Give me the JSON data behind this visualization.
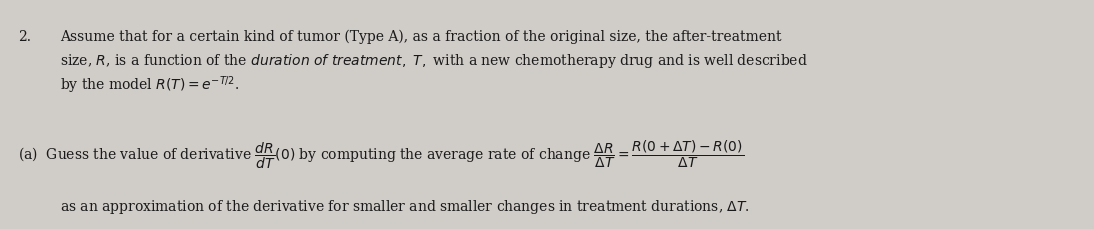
{
  "bg_color": "#d0ccc8",
  "text_color": "#1a1a1a",
  "fig_width": 10.94,
  "fig_height": 2.29,
  "dpi": 100,
  "fontsize": 10.0
}
